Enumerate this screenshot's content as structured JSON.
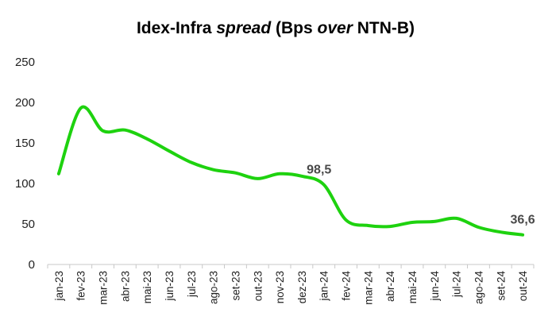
{
  "chart_data": {
    "type": "line",
    "title_parts": [
      {
        "text": "Idex-Infra ",
        "italic": false
      },
      {
        "text": "spread",
        "italic": true
      },
      {
        "text": " (Bps ",
        "italic": false
      },
      {
        "text": "over",
        "italic": true
      },
      {
        "text": " NTN-B)",
        "italic": false
      }
    ],
    "xlabel": "",
    "ylabel": "",
    "ylim": [
      0,
      250
    ],
    "yticks": [
      0,
      50,
      100,
      150,
      200,
      250
    ],
    "grid": false,
    "legend": "none",
    "line_color": "#1ed20f",
    "categories": [
      "jan-23",
      "fev-23",
      "mar-23",
      "abr-23",
      "mai-23",
      "jun-23",
      "jul-23",
      "ago-23",
      "set-23",
      "out-23",
      "nov-23",
      "dez-23",
      "jan-24",
      "fev-24",
      "mar-24",
      "abr-24",
      "mai-24",
      "jun-24",
      "jul-24",
      "ago-24",
      "set-24",
      "out-24"
    ],
    "series": [
      {
        "values": [
          112,
          193,
          165,
          166,
          155,
          140,
          126,
          117,
          113,
          106,
          112,
          109,
          98.5,
          55,
          48,
          47,
          52,
          53,
          57,
          46,
          40,
          36.6
        ]
      }
    ],
    "annotations": [
      {
        "index": 12,
        "text": "98,5"
      },
      {
        "index": 21,
        "text": "36,6"
      }
    ]
  }
}
